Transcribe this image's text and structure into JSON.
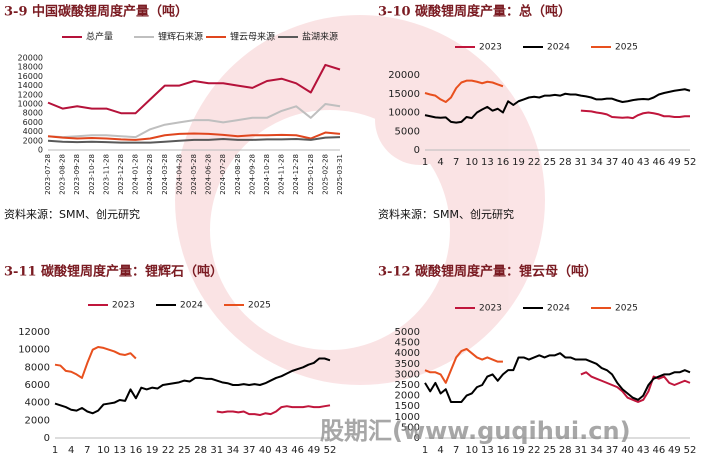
{
  "chart_data": [
    {
      "type": "line",
      "title": "3-9 中国碳酸锂周度产量（吨）",
      "source": "资料来源：SMM、创元研究",
      "categories": [
        "2023-07-28",
        "2023-08-28",
        "2023-09-28",
        "2023-10-28",
        "2023-11-28",
        "2023-12-28",
        "2024-01-28",
        "2024-02-28",
        "2024-03-28",
        "2024-04-28",
        "2024-05-28",
        "2024-06-28",
        "2024-07-28",
        "2024-08-28",
        "2024-09-28",
        "2024-10-28",
        "2024-11-28",
        "2024-12-28",
        "2025-01-28",
        "2025-02-28",
        "2025-03-31"
      ],
      "ylim": [
        0,
        20000
      ],
      "yticks": [
        0,
        2000,
        4000,
        6000,
        8000,
        10000,
        12000,
        14000,
        16000,
        18000,
        20000
      ],
      "series": [
        {
          "name": "总产量",
          "color": "#b5123a",
          "values": [
            10300,
            9000,
            9500,
            9000,
            9000,
            8000,
            8000,
            11000,
            14000,
            14000,
            15000,
            14500,
            14500,
            14000,
            13500,
            15000,
            15500,
            14500,
            12500,
            18500,
            17500
          ]
        },
        {
          "name": "锂辉石来源",
          "color": "#bfbfbf",
          "values": [
            3000,
            2800,
            3000,
            3200,
            3200,
            3000,
            2800,
            4500,
            5500,
            6000,
            6500,
            6500,
            6000,
            6500,
            7000,
            7000,
            8500,
            9500,
            7000,
            10000,
            9500
          ]
        },
        {
          "name": "锂云母来源",
          "color": "#e0461e",
          "values": [
            3000,
            2700,
            2500,
            2600,
            2500,
            2300,
            2200,
            2500,
            3200,
            3500,
            3600,
            3500,
            3300,
            3000,
            3200,
            3200,
            3300,
            3200,
            2500,
            3800,
            3500
          ]
        },
        {
          "name": "盐湖来源",
          "color": "#595959",
          "values": [
            2000,
            1800,
            1700,
            1800,
            1700,
            1600,
            1600,
            1600,
            1800,
            2000,
            2200,
            2200,
            2400,
            2200,
            2200,
            2300,
            2300,
            2400,
            2200,
            2700,
            2800
          ]
        }
      ]
    },
    {
      "type": "line",
      "title": "3-10 碳酸锂周度产量：总（吨）",
      "source": "资料来源：SMM、创元研究",
      "x": [
        1,
        2,
        3,
        4,
        5,
        6,
        7,
        8,
        9,
        10,
        11,
        12,
        13,
        14,
        15,
        16,
        17,
        18,
        19,
        20,
        21,
        22,
        23,
        24,
        25,
        26,
        27,
        28,
        29,
        30,
        31,
        32,
        33,
        34,
        35,
        36,
        37,
        38,
        39,
        40,
        41,
        42,
        43,
        44,
        45,
        46,
        47,
        48,
        49,
        50,
        51,
        52
      ],
      "xlim": [
        1,
        52
      ],
      "xticks": [
        1,
        4,
        7,
        10,
        13,
        16,
        19,
        22,
        25,
        28,
        31,
        34,
        37,
        40,
        43,
        46,
        49,
        52
      ],
      "ylim": [
        0,
        20000
      ],
      "yticks": [
        0,
        5000,
        10000,
        15000,
        20000
      ],
      "series": [
        {
          "name": "2023",
          "color": "#c0163c",
          "values": [
            null,
            null,
            null,
            null,
            null,
            null,
            null,
            null,
            null,
            null,
            null,
            null,
            null,
            null,
            null,
            null,
            null,
            null,
            null,
            null,
            null,
            null,
            null,
            null,
            null,
            null,
            null,
            null,
            null,
            null,
            10500,
            10400,
            10300,
            10000,
            9800,
            9500,
            8800,
            8700,
            8600,
            8700,
            8500,
            9300,
            9800,
            10000,
            9800,
            9500,
            9000,
            9000,
            8800,
            8800,
            9000,
            9000
          ]
        },
        {
          "name": "2024",
          "color": "#000000",
          "values": [
            9300,
            9000,
            8700,
            8600,
            8700,
            7500,
            7300,
            7500,
            8800,
            8500,
            10000,
            10800,
            11500,
            10500,
            11000,
            10000,
            13000,
            12000,
            13000,
            13500,
            14000,
            14200,
            14000,
            14500,
            14500,
            14700,
            14500,
            15000,
            14800,
            14800,
            14500,
            14300,
            14000,
            13500,
            13500,
            13700,
            13700,
            13200,
            12800,
            13000,
            13300,
            13500,
            13600,
            13500,
            14000,
            14800,
            15200,
            15500,
            15800,
            16000,
            16200,
            15800
          ]
        },
        {
          "name": "2025",
          "color": "#e8501e",
          "values": [
            15200,
            14800,
            14500,
            13500,
            12800,
            14000,
            16500,
            18000,
            18500,
            18500,
            18200,
            17800,
            18200,
            18000,
            17500,
            17000,
            null,
            null,
            null,
            null,
            null,
            null,
            null,
            null,
            null,
            null,
            null,
            null,
            null,
            null,
            null,
            null,
            null,
            null,
            null,
            null,
            null,
            null,
            null,
            null,
            null,
            null,
            null,
            null,
            null,
            null,
            null,
            null,
            null,
            null,
            null,
            null
          ]
        }
      ]
    },
    {
      "type": "line",
      "title": "3-11 碳酸锂周度产量：锂辉石（吨）",
      "x": [
        1,
        2,
        3,
        4,
        5,
        6,
        7,
        8,
        9,
        10,
        11,
        12,
        13,
        14,
        15,
        16,
        17,
        18,
        19,
        20,
        21,
        22,
        23,
        24,
        25,
        26,
        27,
        28,
        29,
        30,
        31,
        32,
        33,
        34,
        35,
        36,
        37,
        38,
        39,
        40,
        41,
        42,
        43,
        44,
        45,
        46,
        47,
        48,
        49,
        50,
        51,
        52
      ],
      "xlim": [
        1,
        52
      ],
      "xticks": [
        1,
        4,
        7,
        10,
        13,
        16,
        19,
        22,
        25,
        28,
        31,
        34,
        37,
        40,
        43,
        46,
        49,
        52
      ],
      "ylim": [
        0,
        12000
      ],
      "yticks": [
        0,
        2000,
        4000,
        6000,
        8000,
        10000,
        12000
      ],
      "series": [
        {
          "name": "2023",
          "color": "#c0163c",
          "values": [
            null,
            null,
            null,
            null,
            null,
            null,
            null,
            null,
            null,
            null,
            null,
            null,
            null,
            null,
            null,
            null,
            null,
            null,
            null,
            null,
            null,
            null,
            null,
            null,
            null,
            null,
            null,
            null,
            null,
            null,
            3000,
            2900,
            3000,
            3000,
            2900,
            3000,
            2700,
            2700,
            2600,
            2800,
            2700,
            3000,
            3500,
            3600,
            3500,
            3500,
            3500,
            3600,
            3500,
            3500,
            3600,
            3700
          ]
        },
        {
          "name": "2024",
          "color": "#000000",
          "values": [
            3900,
            3700,
            3500,
            3200,
            3100,
            3400,
            3000,
            2800,
            3100,
            3800,
            3900,
            4000,
            4300,
            4200,
            5500,
            4500,
            5700,
            5500,
            5700,
            5600,
            6000,
            6100,
            6200,
            6300,
            6500,
            6400,
            6800,
            6800,
            6700,
            6700,
            6500,
            6300,
            6200,
            6000,
            6000,
            6100,
            6000,
            6100,
            6000,
            6200,
            6500,
            6800,
            7000,
            7300,
            7600,
            7800,
            8000,
            8300,
            8500,
            9000,
            9000,
            8800
          ]
        },
        {
          "name": "2025",
          "color": "#e8501e",
          "values": [
            8300,
            8200,
            7600,
            7500,
            7200,
            6800,
            8500,
            10000,
            10300,
            10200,
            10000,
            9800,
            9500,
            9400,
            9600,
            9000,
            null,
            null,
            null,
            null,
            null,
            null,
            null,
            null,
            null,
            null,
            null,
            null,
            null,
            null,
            null,
            null,
            null,
            null,
            null,
            null,
            null,
            null,
            null,
            null,
            null,
            null,
            null,
            null,
            null,
            null,
            null,
            null,
            null,
            null,
            null,
            null
          ]
        }
      ]
    },
    {
      "type": "line",
      "title": "3-12 碳酸锂周度产量：锂云母（吨）",
      "x": [
        1,
        2,
        3,
        4,
        5,
        6,
        7,
        8,
        9,
        10,
        11,
        12,
        13,
        14,
        15,
        16,
        17,
        18,
        19,
        20,
        21,
        22,
        23,
        24,
        25,
        26,
        27,
        28,
        29,
        30,
        31,
        32,
        33,
        34,
        35,
        36,
        37,
        38,
        39,
        40,
        41,
        42,
        43,
        44,
        45,
        46,
        47,
        48,
        49,
        50,
        51,
        52
      ],
      "xlim": [
        1,
        52
      ],
      "xticks": [
        1,
        4,
        7,
        10,
        13,
        16,
        19,
        22,
        25,
        28,
        31,
        34,
        37,
        40,
        43,
        46,
        49,
        52
      ],
      "ylim": [
        0,
        5000
      ],
      "yticks": [
        0,
        500,
        1000,
        1500,
        2000,
        2500,
        3000,
        3500,
        4000,
        4500,
        5000
      ],
      "series": [
        {
          "name": "2023",
          "color": "#c0163c",
          "values": [
            null,
            null,
            null,
            null,
            null,
            null,
            null,
            null,
            null,
            null,
            null,
            null,
            null,
            null,
            null,
            null,
            null,
            null,
            null,
            null,
            null,
            null,
            null,
            null,
            null,
            null,
            null,
            null,
            null,
            null,
            3000,
            3100,
            2900,
            2800,
            2700,
            2600,
            2500,
            2400,
            2200,
            1900,
            1800,
            1700,
            1800,
            2200,
            2900,
            2800,
            2900,
            2600,
            2500,
            2600,
            2700,
            2600
          ]
        },
        {
          "name": "2024",
          "color": "#000000",
          "values": [
            2600,
            2200,
            2600,
            2100,
            2300,
            1700,
            1700,
            1700,
            2000,
            2100,
            2400,
            2500,
            2900,
            3000,
            2700,
            3000,
            3200,
            3200,
            3800,
            3800,
            3700,
            3800,
            3900,
            3800,
            3900,
            3900,
            4000,
            3800,
            3800,
            3700,
            3700,
            3700,
            3600,
            3500,
            3300,
            3200,
            3000,
            2600,
            2300,
            2100,
            1900,
            1800,
            2000,
            2500,
            2800,
            2900,
            3000,
            3000,
            3100,
            3100,
            3200,
            3100
          ]
        },
        {
          "name": "2025",
          "color": "#e8501e",
          "values": [
            3200,
            3100,
            3100,
            3000,
            2600,
            3200,
            3800,
            4100,
            4200,
            4000,
            3800,
            3700,
            3800,
            3700,
            3600,
            3600,
            null,
            null,
            null,
            null,
            null,
            null,
            null,
            null,
            null,
            null,
            null,
            null,
            null,
            null,
            null,
            null,
            null,
            null,
            null,
            null,
            null,
            null,
            null,
            null,
            null,
            null,
            null,
            null,
            null,
            null,
            null,
            null,
            null,
            null,
            null,
            null
          ]
        }
      ]
    }
  ],
  "watermark": "股期汇(www.guqihui.cn)"
}
